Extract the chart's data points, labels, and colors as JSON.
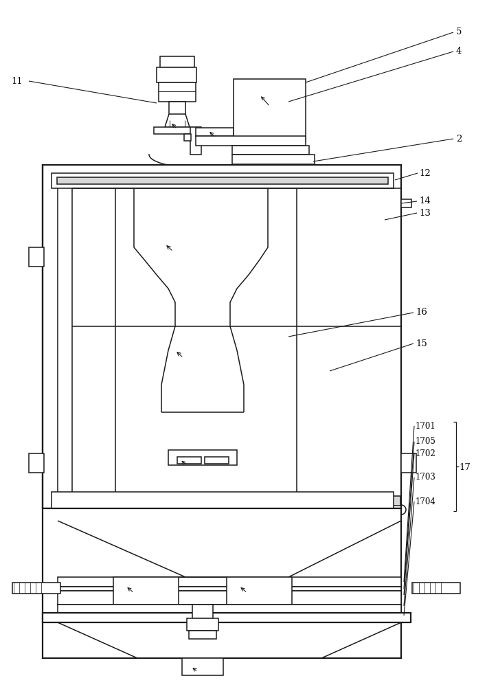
{
  "bg_color": "#ffffff",
  "lc": "#1a1a1a",
  "lw": 1.1,
  "lw2": 1.6,
  "lw_thin": 0.7
}
